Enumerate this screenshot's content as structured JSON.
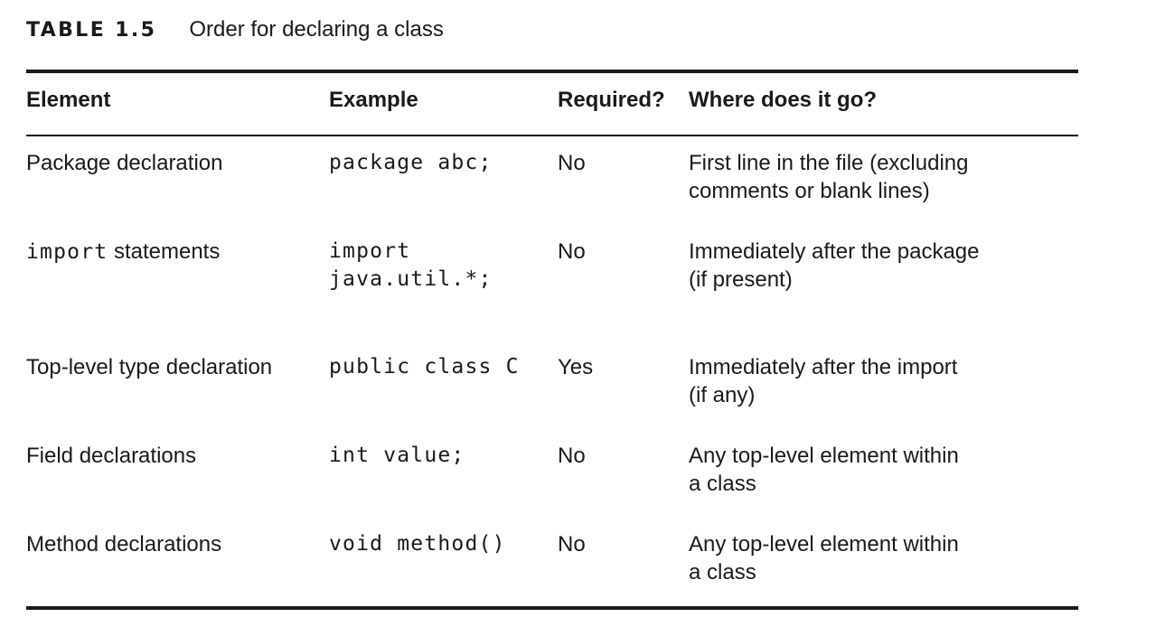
{
  "caption": {
    "label": "TABLE 1.5",
    "title": "Order for declaring a class"
  },
  "table": {
    "headers": {
      "element": "Element",
      "example": "Example",
      "required": "Required?",
      "where": "Where does it go?"
    },
    "rows": [
      {
        "element_code": "",
        "element_text": "Package declaration",
        "example_lines": [
          "package abc;"
        ],
        "required": "No",
        "where_lines": [
          "First line in the file (excluding",
          "comments or blank lines)"
        ]
      },
      {
        "element_code": "import",
        "element_text": " statements",
        "example_lines": [
          "import",
          "java.util.*;"
        ],
        "required": "No",
        "where_lines": [
          "Immediately after the package",
          "(if present)"
        ]
      },
      {
        "element_code": "",
        "element_text": "Top-level type declaration",
        "example_lines": [
          "public class C"
        ],
        "required": "Yes",
        "where_lines": [
          "Immediately after the import",
          "(if any)"
        ]
      },
      {
        "element_code": "",
        "element_text": "Field declarations",
        "example_lines": [
          "int value;"
        ],
        "required": "No",
        "where_lines": [
          "Any top-level element within",
          "a class"
        ]
      },
      {
        "element_code": "",
        "element_text": "Method declarations",
        "example_lines": [
          "void method()"
        ],
        "required": "No",
        "where_lines": [
          "Any top-level element within",
          "a class"
        ]
      }
    ]
  }
}
